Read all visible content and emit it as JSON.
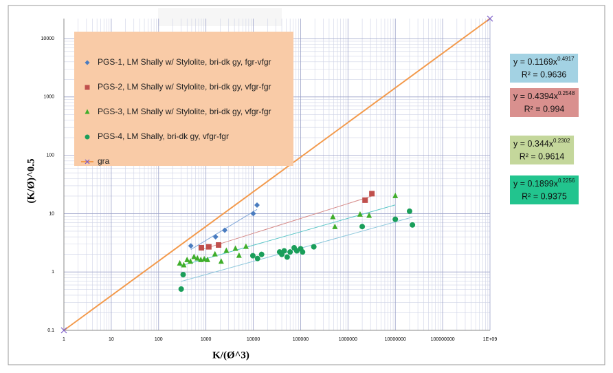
{
  "chart_data": {
    "type": "scatter",
    "x_label": "K/(Ø^3)",
    "y_label": "(K/Ø)^0.5",
    "log_x": true,
    "log_y": true,
    "grid": true,
    "xlim": [
      1,
      1000000000
    ],
    "ylim": [
      0.1,
      22000
    ],
    "xticks": [
      1,
      10,
      100,
      1000,
      10000,
      100000,
      1000000,
      10000000,
      100000000,
      {
        "value": 1000000000,
        "label": "1E+09"
      }
    ],
    "yticks": [
      0.1,
      1,
      10,
      100,
      1000,
      10000
    ],
    "legend_position": "upper left",
    "series": [
      {
        "name": "PGS-1, LM Shally w/ Stylolite, bri-dk gy, fgr-vfgr",
        "color": "#4a7cc0",
        "marker": "diamond",
        "x": [
          480,
          1600,
          2500,
          10000,
          12000
        ],
        "y": [
          2.8,
          4.0,
          5.2,
          10,
          14
        ],
        "trend_color": "#7fa6d8",
        "trend_x": [
          480,
          12000
        ],
        "trend_y": [
          2.43,
          11.8
        ],
        "equation": "y = 0.1169x",
        "exponent": "0.4917",
        "r_squared": "R² = 0.9636",
        "box_color": "#a3d2e3"
      },
      {
        "name": "PGS-2, LM Shally w/ Stylolite, bri-dk gy, vfgr-fgr",
        "color": "#c0504d",
        "marker": "square",
        "x": [
          800,
          1150,
          1850,
          2300000,
          3200000
        ],
        "y": [
          2.6,
          2.7,
          2.9,
          17,
          22
        ],
        "trend_color": "#d68a88",
        "trend_x": [
          800,
          3200000
        ],
        "trend_y": [
          2.41,
          20.0
        ],
        "equation": "y = 0.4394x",
        "exponent": "0.2548",
        "r_squared": "R² = 0.994",
        "box_color": "#d9908e"
      },
      {
        "name": "PGS-3,  LM Shally w/ Stylolite, bri-dk gy, vfgr-fgr",
        "color": "#3fae2a",
        "marker": "triangle",
        "x": [
          280,
          340,
          400,
          470,
          560,
          660,
          780,
          920,
          1080,
          1550,
          2100,
          2700,
          4200,
          5000,
          7000,
          480000,
          530000,
          1800000,
          2800000,
          10000000
        ],
        "y": [
          1.4,
          1.3,
          1.6,
          1.5,
          1.8,
          1.7,
          1.6,
          1.65,
          1.6,
          2.0,
          1.5,
          2.3,
          2.5,
          1.9,
          2.7,
          8.7,
          5.9,
          9.6,
          9.2,
          20
        ],
        "trend_color": "#5cc6c8",
        "trend_x": [
          280,
          10000000
        ],
        "trend_y": [
          1.26,
          14.1
        ],
        "equation": "y = 0.344x",
        "exponent": "0.2302",
        "r_squared": "R² = 0.9614",
        "box_color": "#c4d79b"
      },
      {
        "name": "PGS-4, LM Shally, bri-dk gy, vfgr-fgr",
        "color": "#1a9e5a",
        "marker": "circle",
        "x": [
          300,
          330,
          9800,
          12300,
          15000,
          36000,
          40000,
          45000,
          52000,
          60000,
          73000,
          83000,
          100000,
          110000,
          190000,
          2000000,
          10000000,
          20000000,
          23000000
        ],
        "y": [
          0.51,
          0.9,
          1.9,
          1.7,
          2.0,
          2.2,
          2.0,
          2.3,
          1.8,
          2.2,
          2.6,
          2.3,
          2.5,
          2.2,
          2.7,
          6.0,
          8.0,
          11,
          6.4
        ],
        "trend_color": "#8fc8dc",
        "trend_x": [
          300,
          23000000
        ],
        "trend_y": [
          0.69,
          8.7
        ],
        "equation": "y = 0.1899x",
        "exponent": "0.2256",
        "r_squared": "R² = 0.9375",
        "box_color": "#22c48e"
      },
      {
        "name": "gra",
        "color": "#f39a4c",
        "marker": "x",
        "line": true,
        "x": [
          1,
          1000000000
        ],
        "y": [
          0.1,
          22000
        ]
      }
    ]
  }
}
